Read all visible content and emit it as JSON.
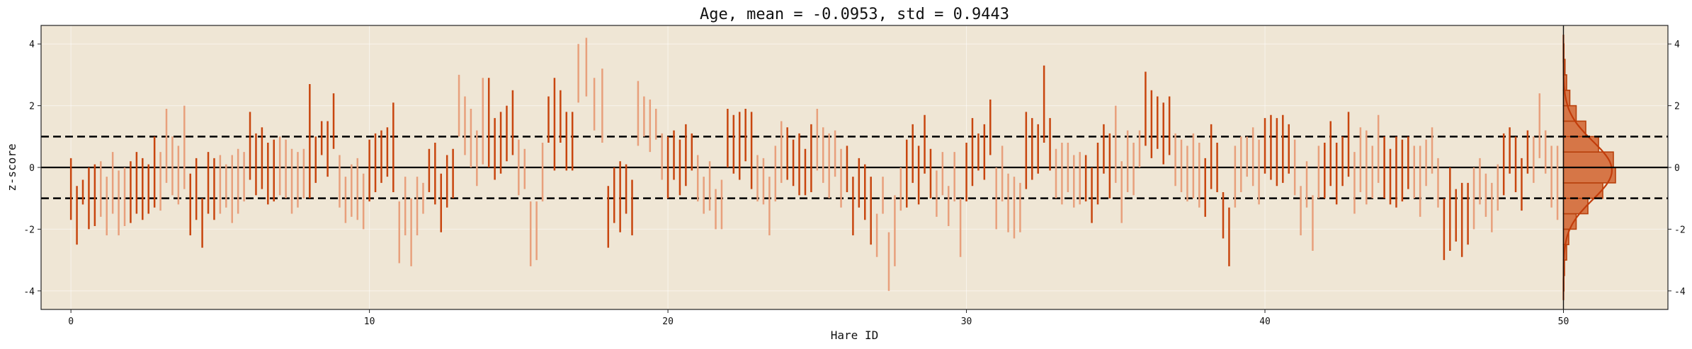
{
  "chart_data": {
    "type": "scatter",
    "title": "Age, mean = -0.0953, std = 0.9443",
    "xlabel": "Hare ID",
    "ylabel": "z-score",
    "xlim": [
      -1,
      53.5
    ],
    "ylim": [
      -4.6,
      4.6
    ],
    "x_ticks": [
      0,
      10,
      20,
      30,
      40,
      50
    ],
    "y_ticks": [
      -4,
      -2,
      0,
      2,
      4
    ],
    "grid": true,
    "background": "#efe6d5",
    "colors": {
      "dark": "#c8460f",
      "light": "#e8a07c",
      "hist_fill": "#d67647",
      "hist_edge": "#b8400c",
      "kde": "#c23c0a"
    },
    "reference_lines": {
      "solid": [
        0
      ],
      "dashed": [
        -1,
        1
      ]
    },
    "groups": [
      {
        "id": 0,
        "segments": [
          [
            -1.7,
            0.3
          ],
          [
            -2.5,
            -0.6
          ],
          [
            -1.2,
            -0.4
          ],
          [
            -2.0,
            0.0
          ],
          [
            -1.9,
            0.1
          ]
        ]
      },
      {
        "id": 1,
        "segments": [
          [
            -1.6,
            0.2
          ],
          [
            -2.2,
            -0.3
          ],
          [
            -1.5,
            0.5
          ],
          [
            -2.2,
            -0.1
          ],
          [
            -1.9,
            0.0
          ]
        ]
      },
      {
        "id": 2,
        "segments": [
          [
            -1.8,
            0.2
          ],
          [
            -1.5,
            0.5
          ],
          [
            -1.7,
            0.3
          ],
          [
            -1.5,
            0.1
          ],
          [
            -1.3,
            1.0
          ]
        ]
      },
      {
        "id": 3,
        "segments": [
          [
            -1.4,
            0.5
          ],
          [
            -0.5,
            1.9
          ],
          [
            -0.9,
            1.0
          ],
          [
            -1.2,
            0.7
          ],
          [
            -0.7,
            2.0
          ]
        ]
      },
      {
        "id": 4,
        "segments": [
          [
            -2.2,
            -0.2
          ],
          [
            -1.7,
            0.3
          ],
          [
            -2.6,
            -1.0
          ],
          [
            -1.5,
            0.5
          ],
          [
            -1.7,
            0.3
          ]
        ]
      },
      {
        "id": 5,
        "segments": [
          [
            -1.5,
            0.4
          ],
          [
            -1.3,
            0.1
          ],
          [
            -1.8,
            0.4
          ],
          [
            -1.5,
            0.6
          ],
          [
            -1.1,
            0.5
          ]
        ]
      },
      {
        "id": 6,
        "segments": [
          [
            -0.4,
            1.8
          ],
          [
            -0.9,
            1.1
          ],
          [
            -0.7,
            1.3
          ],
          [
            -1.2,
            0.8
          ],
          [
            -1.1,
            0.9
          ]
        ]
      },
      {
        "id": 7,
        "segments": [
          [
            -0.9,
            1.0
          ],
          [
            -1.0,
            0.9
          ],
          [
            -1.5,
            0.6
          ],
          [
            -1.3,
            0.5
          ],
          [
            -1.0,
            0.6
          ]
        ]
      },
      {
        "id": 8,
        "segments": [
          [
            -1.0,
            2.7
          ],
          [
            -0.5,
            1.0
          ],
          [
            0.4,
            1.5
          ],
          [
            -0.3,
            1.5
          ],
          [
            0.6,
            2.4
          ]
        ]
      },
      {
        "id": 9,
        "segments": [
          [
            -1.3,
            0.4
          ],
          [
            -1.8,
            -0.3
          ],
          [
            -1.6,
            0.1
          ],
          [
            -1.7,
            0.3
          ],
          [
            -2.0,
            -0.2
          ]
        ]
      },
      {
        "id": 10,
        "segments": [
          [
            -1.1,
            0.9
          ],
          [
            -0.8,
            1.1
          ],
          [
            -0.5,
            1.2
          ],
          [
            -0.3,
            1.3
          ],
          [
            -0.8,
            2.1
          ]
        ]
      },
      {
        "id": 11,
        "segments": [
          [
            -3.1,
            -1.1
          ],
          [
            -2.2,
            -0.3
          ],
          [
            -3.2,
            -1.0
          ],
          [
            -2.2,
            -0.3
          ],
          [
            -1.5,
            -0.5
          ]
        ]
      },
      {
        "id": 12,
        "segments": [
          [
            -0.8,
            0.6
          ],
          [
            -1.2,
            0.8
          ],
          [
            -2.1,
            -0.2
          ],
          [
            -1.3,
            0.4
          ],
          [
            -1.0,
            0.6
          ]
        ]
      },
      {
        "id": 13,
        "segments": [
          [
            1.0,
            3.0
          ],
          [
            0.4,
            2.3
          ],
          [
            0.0,
            1.9
          ],
          [
            -0.6,
            1.2
          ],
          [
            0.1,
            2.9
          ]
        ]
      },
      {
        "id": 14,
        "segments": [
          [
            0.0,
            2.9
          ],
          [
            -0.4,
            1.6
          ],
          [
            -0.2,
            1.8
          ],
          [
            0.2,
            2.0
          ],
          [
            0.4,
            2.5
          ]
        ]
      },
      {
        "id": 15,
        "segments": [
          [
            -0.9,
            0.9
          ],
          [
            -0.7,
            0.6
          ],
          [
            -3.2,
            -1.1
          ],
          [
            -3.0,
            -1.1
          ],
          [
            -1.1,
            0.8
          ]
        ]
      },
      {
        "id": 16,
        "segments": [
          [
            0.8,
            2.3
          ],
          [
            -0.1,
            2.9
          ],
          [
            0.8,
            2.5
          ],
          [
            -0.1,
            1.8
          ],
          [
            -0.1,
            1.8
          ]
        ]
      },
      {
        "id": 17,
        "segments": [
          [
            2.1,
            4.0
          ],
          [
            2.3,
            4.2
          ],
          [
            1.2,
            2.9
          ],
          [
            0.8,
            3.2
          ]
        ]
      },
      {
        "id": 18,
        "segments": [
          [
            -2.6,
            -0.6
          ],
          [
            -1.8,
            0.0
          ],
          [
            -2.1,
            0.2
          ],
          [
            -1.5,
            0.1
          ],
          [
            -2.2,
            -0.4
          ]
        ]
      },
      {
        "id": 19,
        "segments": [
          [
            0.7,
            2.8
          ],
          [
            1.0,
            2.3
          ],
          [
            0.5,
            2.2
          ],
          [
            0.9,
            1.9
          ],
          [
            -0.4,
            1.1
          ]
        ]
      },
      {
        "id": 20,
        "segments": [
          [
            -1.0,
            1.0
          ],
          [
            -0.4,
            1.2
          ],
          [
            -0.9,
            0.9
          ],
          [
            -0.6,
            1.4
          ],
          [
            -0.1,
            1.1
          ]
        ]
      },
      {
        "id": 21,
        "segments": [
          [
            -1.1,
            0.4
          ],
          [
            -1.5,
            -0.3
          ],
          [
            -1.4,
            0.2
          ],
          [
            -2.0,
            -0.7
          ],
          [
            -2.0,
            -0.4
          ]
        ]
      },
      {
        "id": 22,
        "segments": [
          [
            0.0,
            1.9
          ],
          [
            -0.2,
            1.7
          ],
          [
            -0.4,
            1.8
          ],
          [
            0.2,
            1.9
          ],
          [
            -0.7,
            1.8
          ]
        ]
      },
      {
        "id": 23,
        "segments": [
          [
            -1.1,
            0.4
          ],
          [
            -1.2,
            0.3
          ],
          [
            -2.2,
            -0.3
          ],
          [
            -1.1,
            0.7
          ],
          [
            -0.5,
            1.5
          ]
        ]
      },
      {
        "id": 24,
        "segments": [
          [
            -0.4,
            1.3
          ],
          [
            -0.6,
            0.9
          ],
          [
            -0.9,
            1.1
          ],
          [
            -0.9,
            0.6
          ],
          [
            -0.8,
            1.4
          ]
        ]
      },
      {
        "id": 25,
        "segments": [
          [
            -0.1,
            1.9
          ],
          [
            -0.5,
            1.3
          ],
          [
            -1.0,
            1.1
          ],
          [
            -0.3,
            1.2
          ],
          [
            -1.3,
            0.6
          ]
        ]
      },
      {
        "id": 26,
        "segments": [
          [
            -0.8,
            0.7
          ],
          [
            -2.2,
            -0.3
          ],
          [
            -1.3,
            0.3
          ],
          [
            -1.7,
            0.1
          ],
          [
            -2.5,
            -0.3
          ]
        ]
      },
      {
        "id": 27,
        "segments": [
          [
            -2.9,
            -1.5
          ],
          [
            -1.5,
            -0.3
          ],
          [
            -4.0,
            -2.1
          ],
          [
            -3.2,
            -0.9
          ],
          [
            -1.4,
            0.0
          ]
        ]
      },
      {
        "id": 28,
        "segments": [
          [
            -1.3,
            0.9
          ],
          [
            -0.5,
            1.4
          ],
          [
            -1.2,
            0.7
          ],
          [
            -0.2,
            1.7
          ],
          [
            -1.0,
            0.6
          ]
        ]
      },
      {
        "id": 29,
        "segments": [
          [
            -1.6,
            -0.1
          ],
          [
            -0.9,
            0.5
          ],
          [
            -1.9,
            -0.6
          ],
          [
            -1.1,
            0.5
          ],
          [
            -2.9,
            -1.0
          ]
        ]
      },
      {
        "id": 30,
        "segments": [
          [
            -1.1,
            0.8
          ],
          [
            -0.6,
            1.6
          ],
          [
            -0.1,
            1.1
          ],
          [
            -0.4,
            1.4
          ],
          [
            0.4,
            2.2
          ]
        ]
      },
      {
        "id": 31,
        "segments": [
          [
            -2.0,
            0.0
          ],
          [
            -1.1,
            0.7
          ],
          [
            -2.1,
            -0.2
          ],
          [
            -2.3,
            -0.3
          ],
          [
            -2.1,
            -0.5
          ]
        ]
      },
      {
        "id": 32,
        "segments": [
          [
            -0.7,
            1.8
          ],
          [
            -0.4,
            1.6
          ],
          [
            -0.2,
            1.4
          ],
          [
            0.8,
            3.3
          ],
          [
            -0.1,
            1.6
          ]
        ]
      },
      {
        "id": 33,
        "segments": [
          [
            -1.0,
            0.6
          ],
          [
            -1.2,
            0.8
          ],
          [
            -0.8,
            0.8
          ],
          [
            -1.3,
            0.4
          ],
          [
            -1.2,
            0.5
          ]
        ]
      },
      {
        "id": 34,
        "segments": [
          [
            -1.1,
            0.4
          ],
          [
            -1.8,
            0.0
          ],
          [
            -1.2,
            0.8
          ],
          [
            -0.2,
            1.4
          ],
          [
            -1.0,
            1.1
          ]
        ]
      },
      {
        "id": 35,
        "segments": [
          [
            -0.5,
            2.0
          ],
          [
            -1.8,
            0.2
          ],
          [
            -0.8,
            1.2
          ],
          [
            -0.9,
            0.8
          ],
          [
            0.0,
            1.2
          ]
        ]
      },
      {
        "id": 36,
        "segments": [
          [
            0.7,
            3.1
          ],
          [
            0.3,
            2.5
          ],
          [
            0.6,
            2.3
          ],
          [
            0.1,
            2.1
          ],
          [
            0.4,
            2.3
          ]
        ]
      },
      {
        "id": 37,
        "segments": [
          [
            -0.6,
            1.1
          ],
          [
            -0.8,
            0.9
          ],
          [
            -1.1,
            0.7
          ],
          [
            -1.0,
            1.1
          ],
          [
            -1.3,
            0.8
          ]
        ]
      },
      {
        "id": 38,
        "segments": [
          [
            -1.6,
            0.3
          ],
          [
            -0.7,
            1.4
          ],
          [
            -0.8,
            0.8
          ],
          [
            -2.3,
            -0.8
          ],
          [
            -3.2,
            -1.3
          ]
        ]
      },
      {
        "id": 39,
        "segments": [
          [
            -1.3,
            0.7
          ],
          [
            -0.8,
            1.0
          ],
          [
            -0.3,
            1.0
          ],
          [
            -0.6,
            1.3
          ],
          [
            -1.2,
            0.9
          ]
        ]
      },
      {
        "id": 40,
        "segments": [
          [
            -0.2,
            1.6
          ],
          [
            -0.4,
            1.7
          ],
          [
            -0.6,
            1.6
          ],
          [
            -0.5,
            1.7
          ],
          [
            -0.2,
            1.4
          ]
        ]
      },
      {
        "id": 41,
        "segments": [
          [
            -0.9,
            0.9
          ],
          [
            -2.2,
            -0.6
          ],
          [
            -1.3,
            0.2
          ],
          [
            -2.7,
            -0.9
          ],
          [
            -1.0,
            0.7
          ]
        ]
      },
      {
        "id": 42,
        "segments": [
          [
            -1.0,
            0.8
          ],
          [
            -0.6,
            1.5
          ],
          [
            -1.2,
            0.8
          ],
          [
            -0.6,
            1.0
          ],
          [
            -0.3,
            1.8
          ]
        ]
      },
      {
        "id": 43,
        "segments": [
          [
            -1.5,
            0.5
          ],
          [
            -0.8,
            1.3
          ],
          [
            -1.2,
            1.2
          ],
          [
            -1.0,
            0.7
          ],
          [
            -0.5,
            1.7
          ]
        ]
      },
      {
        "id": 44,
        "segments": [
          [
            -1.0,
            1.0
          ],
          [
            -1.2,
            0.6
          ],
          [
            -1.3,
            1.0
          ],
          [
            -1.1,
            0.9
          ],
          [
            -0.7,
            1.0
          ]
        ]
      },
      {
        "id": 45,
        "segments": [
          [
            -1.0,
            0.7
          ],
          [
            -1.6,
            0.7
          ],
          [
            -0.6,
            0.9
          ],
          [
            -0.2,
            1.3
          ],
          [
            -1.3,
            0.3
          ]
        ]
      },
      {
        "id": 46,
        "segments": [
          [
            -3.0,
            -1.0
          ],
          [
            -2.7,
            0.0
          ],
          [
            -2.4,
            -0.7
          ],
          [
            -2.9,
            -0.5
          ],
          [
            -2.5,
            -0.5
          ]
        ]
      },
      {
        "id": 47,
        "segments": [
          [
            -2.0,
            0.0
          ],
          [
            -1.2,
            0.3
          ],
          [
            -1.6,
            -0.2
          ],
          [
            -2.1,
            -0.5
          ],
          [
            -1.4,
            0.1
          ]
        ]
      },
      {
        "id": 48,
        "segments": [
          [
            -0.9,
            1.1
          ],
          [
            -0.2,
            1.3
          ],
          [
            -0.8,
            1.0
          ],
          [
            -1.4,
            0.3
          ],
          [
            -0.2,
            1.2
          ]
        ]
      },
      {
        "id": 49,
        "segments": [
          [
            -0.5,
            1.0
          ],
          [
            0.3,
            2.4
          ],
          [
            -0.2,
            1.2
          ],
          [
            -1.3,
            0.7
          ],
          [
            -1.7,
            0.7
          ]
        ]
      }
    ],
    "histogram": {
      "bin_edges": [
        -4,
        -3.5,
        -3,
        -2.5,
        -2,
        -1.5,
        -1,
        -0.5,
        0,
        0.5,
        1,
        1.5,
        2,
        2.5,
        3,
        3.5,
        4
      ],
      "densities": [
        0.005,
        0.01,
        0.03,
        0.05,
        0.12,
        0.23,
        0.37,
        0.49,
        0.47,
        0.33,
        0.21,
        0.12,
        0.06,
        0.03,
        0.015,
        0.005
      ]
    }
  }
}
